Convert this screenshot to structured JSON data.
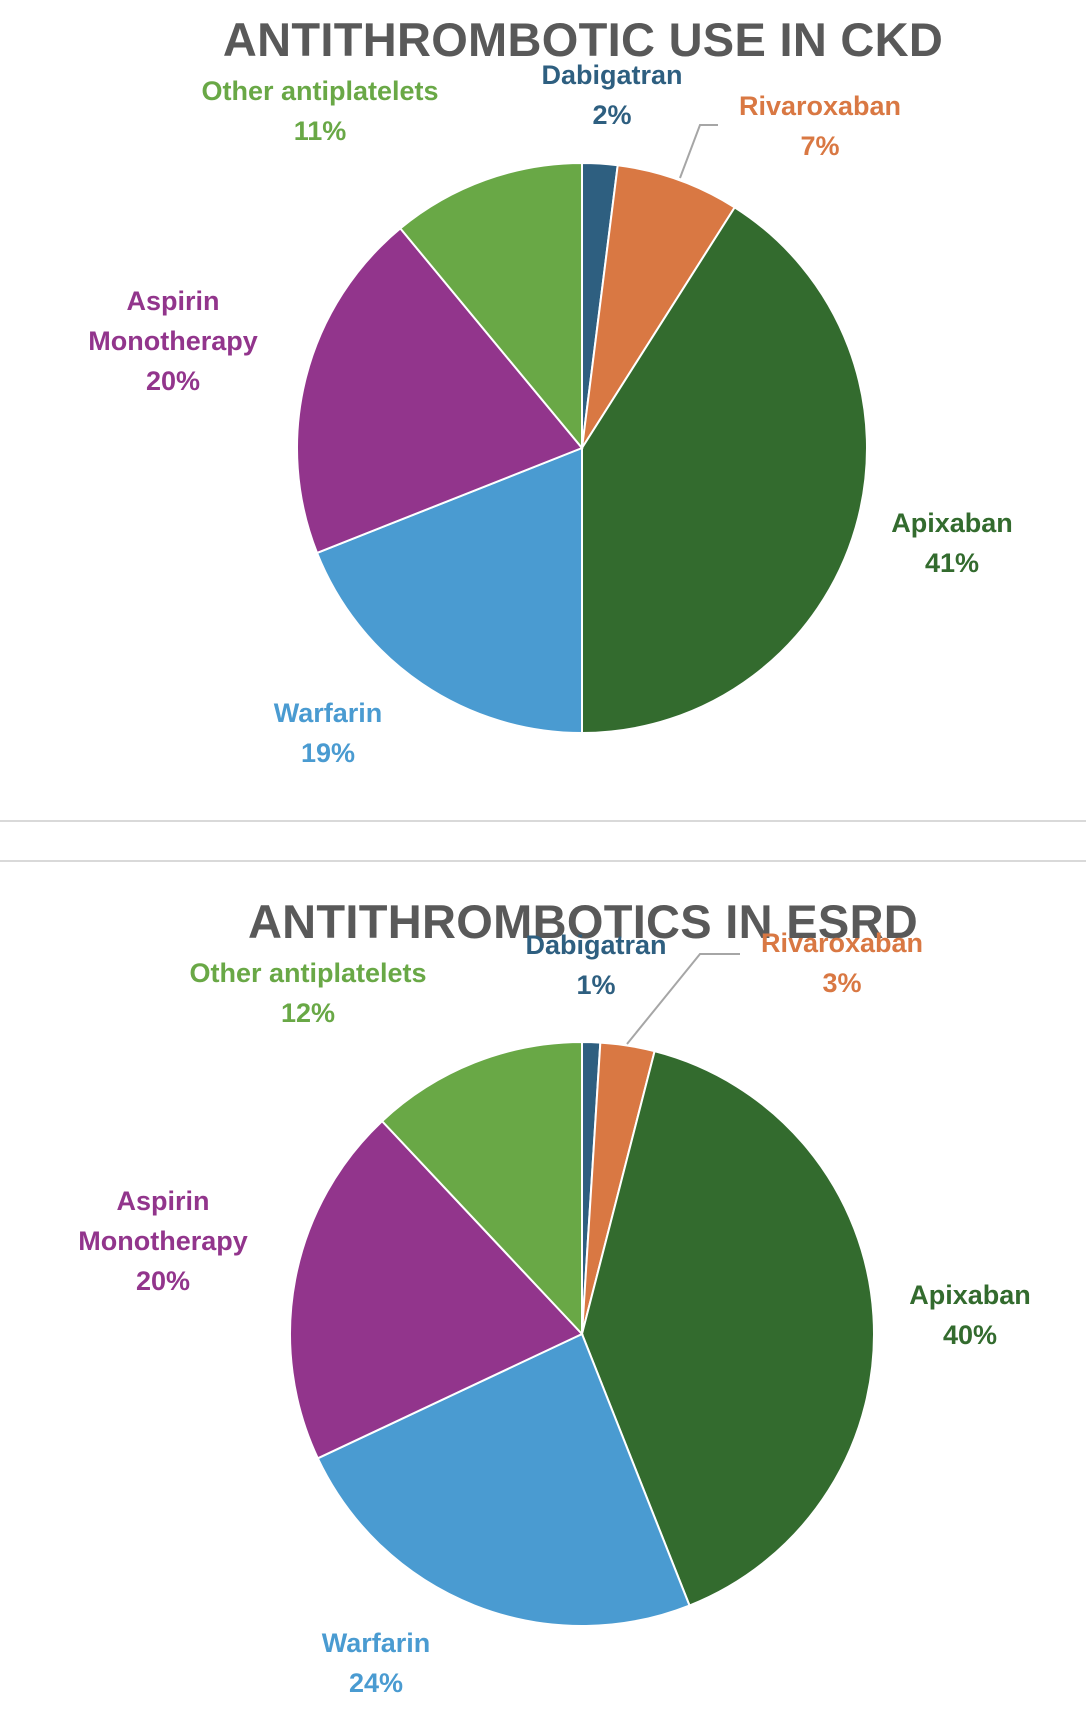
{
  "chart_data": [
    {
      "type": "pie",
      "title": "ANTITHROMBOTIC USE IN CKD",
      "start_angle_deg": 0,
      "direction": "clockwise",
      "slices": [
        {
          "label": "Dabigatran",
          "value": 2,
          "value_label": "2%",
          "color": "#2e5f80"
        },
        {
          "label": "Rivaroxaban",
          "value": 7,
          "value_label": "7%",
          "color": "#d97843"
        },
        {
          "label": "Apixaban",
          "value": 41,
          "value_label": "41%",
          "color": "#336b2e"
        },
        {
          "label": "Warfarin",
          "value": 19,
          "value_label": "19%",
          "color": "#4a9bd1"
        },
        {
          "label": "Aspirin\nMonotherapy",
          "value": 20,
          "value_label": "20%",
          "color": "#92358c"
        },
        {
          "label": "Other antiplatelets",
          "value": 11,
          "value_label": "11%",
          "color": "#69a846"
        }
      ]
    },
    {
      "type": "pie",
      "title": "ANTITHROMBOTICS IN ESRD",
      "start_angle_deg": 0,
      "direction": "clockwise",
      "slices": [
        {
          "label": "Dabigatran",
          "value": 1,
          "value_label": "1%",
          "color": "#2e5f80"
        },
        {
          "label": "Rivaroxaban",
          "value": 3,
          "value_label": "3%",
          "color": "#d97843"
        },
        {
          "label": "Apixaban",
          "value": 40,
          "value_label": "40%",
          "color": "#336b2e"
        },
        {
          "label": "Warfarin",
          "value": 24,
          "value_label": "24%",
          "color": "#4a9bd1"
        },
        {
          "label": "Aspirin\nMonotherapy",
          "value": 20,
          "value_label": "20%",
          "color": "#92358c"
        },
        {
          "label": "Other antiplatelets",
          "value": 12,
          "value_label": "12%",
          "color": "#69a846"
        }
      ]
    }
  ]
}
